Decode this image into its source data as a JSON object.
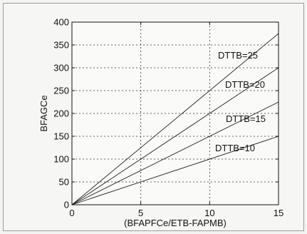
{
  "chart_data": {
    "type": "line",
    "xlabel": "(BFAPFCe/ETB-FAPMB)",
    "ylabel": "BFAGCe",
    "xlim": [
      0,
      15
    ],
    "ylim": [
      0,
      400
    ],
    "x_ticks": [
      "0",
      "5",
      "10",
      "15"
    ],
    "y_ticks": [
      "0",
      "50",
      "100",
      "150",
      "200",
      "250",
      "300",
      "350",
      "400"
    ],
    "grid": true,
    "series": [
      {
        "name": "DTTB=25",
        "x": [
          0,
          15
        ],
        "values": [
          0,
          375
        ]
      },
      {
        "name": "DTTB=20",
        "x": [
          0,
          15
        ],
        "values": [
          0,
          300
        ]
      },
      {
        "name": "DTTB=15",
        "x": [
          0,
          15
        ],
        "values": [
          0,
          225
        ]
      },
      {
        "name": "DTTB=10",
        "x": [
          0,
          15
        ],
        "values": [
          0,
          150
        ]
      }
    ]
  }
}
